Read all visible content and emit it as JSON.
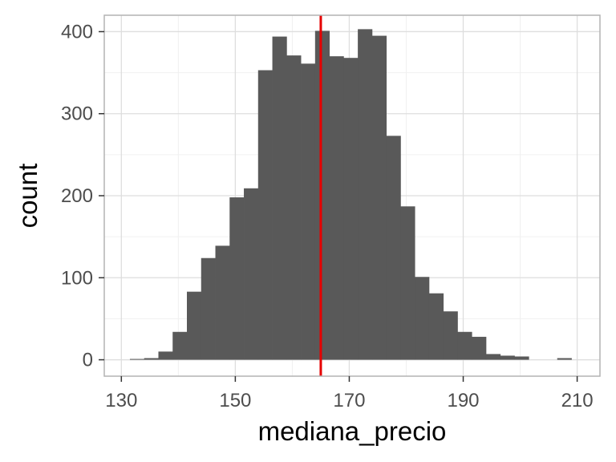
{
  "chart_data": {
    "type": "bar",
    "xlabel": "mediana_precio",
    "ylabel": "count",
    "xlim": [
      127,
      214
    ],
    "ylim": [
      -20,
      420
    ],
    "x_ticks": [
      130,
      150,
      170,
      190,
      210
    ],
    "y_ticks": [
      0,
      100,
      200,
      300,
      400
    ],
    "minor_x_ticks": [
      140,
      160,
      180,
      200
    ],
    "minor_y_ticks": [
      50,
      150,
      250,
      350
    ],
    "grid": true,
    "bar_color": "#595959",
    "vline": {
      "x": 165,
      "color": "#e60000"
    },
    "bins": [
      {
        "x0": 131.5,
        "x1": 134.0,
        "count": 1
      },
      {
        "x0": 134.0,
        "x1": 136.5,
        "count": 2
      },
      {
        "x0": 136.5,
        "x1": 139.0,
        "count": 10
      },
      {
        "x0": 139.0,
        "x1": 141.5,
        "count": 34
      },
      {
        "x0": 141.5,
        "x1": 144.0,
        "count": 83
      },
      {
        "x0": 144.0,
        "x1": 146.5,
        "count": 124
      },
      {
        "x0": 146.5,
        "x1": 149.0,
        "count": 139
      },
      {
        "x0": 149.0,
        "x1": 151.5,
        "count": 198
      },
      {
        "x0": 151.5,
        "x1": 154.0,
        "count": 209
      },
      {
        "x0": 154.0,
        "x1": 156.5,
        "count": 353
      },
      {
        "x0": 156.5,
        "x1": 159.0,
        "count": 394
      },
      {
        "x0": 159.0,
        "x1": 161.5,
        "count": 371
      },
      {
        "x0": 161.5,
        "x1": 164.0,
        "count": 361
      },
      {
        "x0": 164.0,
        "x1": 166.5,
        "count": 401
      },
      {
        "x0": 166.5,
        "x1": 169.0,
        "count": 370
      },
      {
        "x0": 169.0,
        "x1": 171.5,
        "count": 368
      },
      {
        "x0": 171.5,
        "x1": 174.0,
        "count": 403
      },
      {
        "x0": 174.0,
        "x1": 176.5,
        "count": 395
      },
      {
        "x0": 176.5,
        "x1": 179.0,
        "count": 273
      },
      {
        "x0": 179.0,
        "x1": 181.5,
        "count": 187
      },
      {
        "x0": 181.5,
        "x1": 184.0,
        "count": 101
      },
      {
        "x0": 184.0,
        "x1": 186.5,
        "count": 81
      },
      {
        "x0": 186.5,
        "x1": 189.0,
        "count": 59
      },
      {
        "x0": 189.0,
        "x1": 191.5,
        "count": 34
      },
      {
        "x0": 191.5,
        "x1": 194.0,
        "count": 28
      },
      {
        "x0": 194.0,
        "x1": 196.5,
        "count": 7
      },
      {
        "x0": 196.5,
        "x1": 199.0,
        "count": 5
      },
      {
        "x0": 199.0,
        "x1": 201.5,
        "count": 4
      },
      {
        "x0": 201.5,
        "x1": 204.0,
        "count": 0
      },
      {
        "x0": 204.0,
        "x1": 206.5,
        "count": 0
      },
      {
        "x0": 206.5,
        "x1": 209.0,
        "count": 2
      }
    ]
  }
}
